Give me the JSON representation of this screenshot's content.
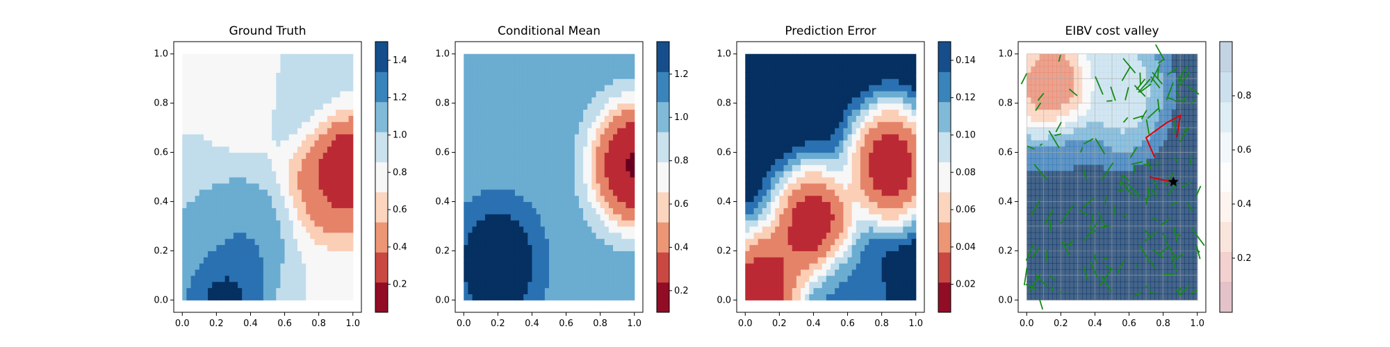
{
  "chart_data": [
    {
      "type": "heatmap",
      "title": "Ground Truth",
      "xlabel": "",
      "ylabel": "",
      "xlim": [
        -0.05,
        1.05
      ],
      "ylim": [
        -0.05,
        1.05
      ],
      "x_ticks": [
        "0.0",
        "0.2",
        "0.4",
        "0.6",
        "0.8",
        "1.0"
      ],
      "y_ticks": [
        "0.0",
        "0.2",
        "0.4",
        "0.6",
        "0.8",
        "1.0"
      ],
      "colormap": "RdBu",
      "colorbar_range": [
        0.05,
        1.5
      ],
      "colorbar_ticks": [
        "0.2",
        "0.4",
        "0.6",
        "0.8",
        "1.0",
        "1.2",
        "1.4"
      ],
      "features": [
        {
          "x": 0.95,
          "y": 0.55,
          "value": 0.1
        },
        {
          "x": 0.9,
          "y": 0.5,
          "value": 0.4
        },
        {
          "x": 0.4,
          "y": 0.9,
          "value": 0.7
        },
        {
          "x": 0.25,
          "y": 0.05,
          "value": 1.5
        },
        {
          "x": 0.35,
          "y": 0.25,
          "value": 1.2
        },
        {
          "x": 0.1,
          "y": 0.3,
          "value": 1.05
        },
        {
          "x": 0.9,
          "y": 0.95,
          "value": 0.9
        },
        {
          "x": 0.7,
          "y": 0.85,
          "value": 1.0
        }
      ],
      "base_value": 0.85
    },
    {
      "type": "heatmap",
      "title": "Conditional Mean",
      "xlabel": "",
      "ylabel": "",
      "xlim": [
        -0.05,
        1.05
      ],
      "ylim": [
        -0.05,
        1.05
      ],
      "x_ticks": [
        "0.0",
        "0.2",
        "0.4",
        "0.6",
        "0.8",
        "1.0"
      ],
      "y_ticks": [
        "0.0",
        "0.2",
        "0.4",
        "0.6",
        "0.8",
        "1.0"
      ],
      "colormap": "RdBu",
      "colorbar_range": [
        0.1,
        1.35
      ],
      "colorbar_ticks": [
        "0.2",
        "0.4",
        "0.6",
        "0.8",
        "1.0",
        "1.2"
      ],
      "features": [
        {
          "x": 1.0,
          "y": 0.55,
          "value": 0.1
        },
        {
          "x": 0.2,
          "y": 0.15,
          "value": 1.35
        },
        {
          "x": 0.3,
          "y": 0.8,
          "value": 1.0
        }
      ],
      "base_value": 1.0
    },
    {
      "type": "heatmap",
      "title": "Prediction Error",
      "xlabel": "",
      "ylabel": "",
      "xlim": [
        -0.05,
        1.05
      ],
      "ylim": [
        -0.05,
        1.05
      ],
      "x_ticks": [
        "0.0",
        "0.2",
        "0.4",
        "0.6",
        "0.8",
        "1.0"
      ],
      "y_ticks": [
        "0.0",
        "0.2",
        "0.4",
        "0.6",
        "0.8",
        "1.0"
      ],
      "colormap": "RdBu",
      "colorbar_range": [
        0.005,
        0.15
      ],
      "colorbar_ticks": [
        "0.02",
        "0.04",
        "0.06",
        "0.08",
        "0.10",
        "0.12",
        "0.14"
      ],
      "features": [
        {
          "x": 0.1,
          "y": 0.05,
          "value": 0.005
        },
        {
          "x": 0.4,
          "y": 0.3,
          "value": 0.005
        },
        {
          "x": 0.85,
          "y": 0.55,
          "value": 0.005
        },
        {
          "x": 0.6,
          "y": 0.0,
          "value": 0.12
        }
      ],
      "base_value": 0.15
    },
    {
      "type": "heatmap",
      "title": "EIBV cost valley",
      "xlabel": "",
      "ylabel": "",
      "xlim": [
        -0.05,
        1.05
      ],
      "ylim": [
        -0.05,
        1.05
      ],
      "x_ticks": [
        "0.0",
        "0.2",
        "0.4",
        "0.6",
        "0.8",
        "1.0"
      ],
      "y_ticks": [
        "0.0",
        "0.2",
        "0.4",
        "0.6",
        "0.8",
        "1.0"
      ],
      "colormap": "RdBu",
      "colorbar_range": [
        0.0,
        1.0
      ],
      "colorbar_ticks": [
        "0.2",
        "0.4",
        "0.6",
        "0.8"
      ],
      "grid": true,
      "features": [
        {
          "x": 0.15,
          "y": 0.85,
          "value": 0.1
        },
        {
          "x": 0.55,
          "y": 0.85,
          "value": 0.55
        },
        {
          "x": 0.2,
          "y": 0.55,
          "value": 0.9
        }
      ],
      "base_value": 0.95,
      "low_region_value": 0.95,
      "green_segments": 140,
      "red_path": [
        [
          0.75,
          0.58
        ],
        [
          0.7,
          0.66
        ],
        [
          0.82,
          0.72
        ],
        [
          0.9,
          0.75
        ],
        [
          0.88,
          0.66
        ]
      ],
      "red_path2": [
        [
          0.72,
          0.5
        ],
        [
          0.85,
          0.48
        ]
      ],
      "star": {
        "x": 0.86,
        "y": 0.48
      }
    }
  ]
}
